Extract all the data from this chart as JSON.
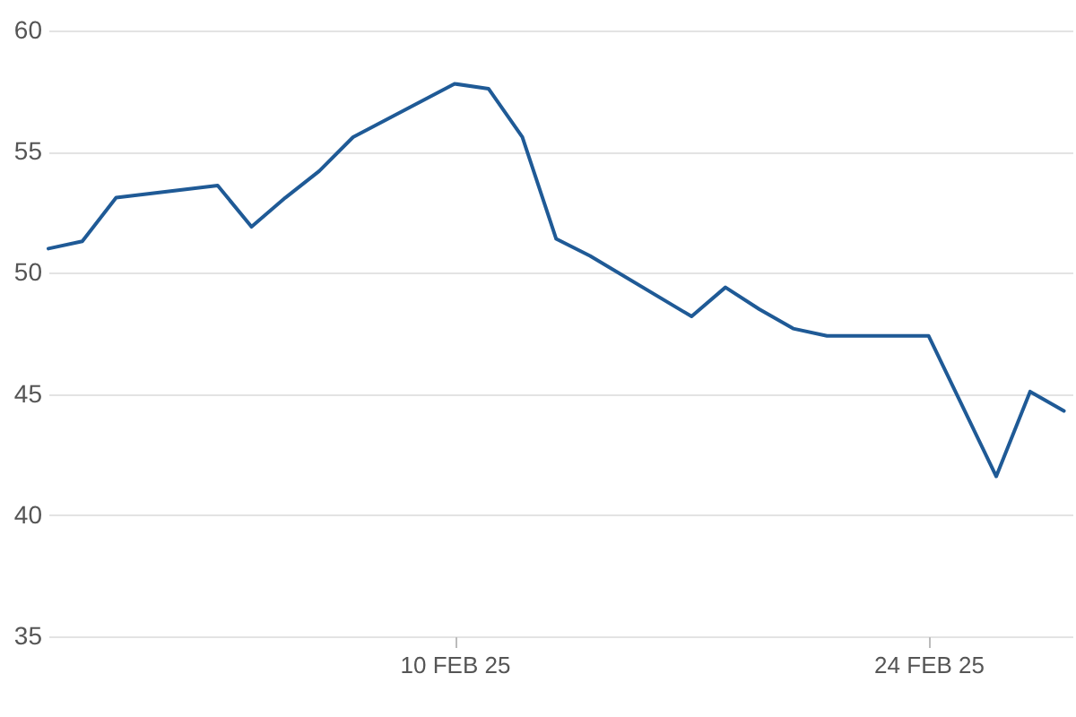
{
  "chart_data": {
    "type": "line",
    "x": [
      "--01-29",
      "--01-30",
      "--01-31",
      "--02-03",
      "--02-04",
      "--02-05",
      "--02-06",
      "--02-07",
      "--02-10",
      "--02-11",
      "--02-12",
      "--02-13",
      "--02-14",
      "--02-17",
      "--02-18",
      "--02-19",
      "--02-20",
      "--02-21",
      "--02-24",
      "--02-26",
      "--02-27",
      "--02-28"
    ],
    "series": [
      {
        "color": "#1f5a96",
        "values": [
          51.0,
          51.3,
          53.1,
          53.6,
          51.9,
          53.1,
          54.2,
          55.6,
          57.8,
          57.6,
          55.6,
          51.4,
          50.7,
          48.2,
          49.4,
          48.5,
          47.7,
          47.4,
          47.4,
          41.6,
          45.1,
          44.3
        ]
      }
    ],
    "xlim": [
      "--01-29",
      "--02-28T06:00"
    ],
    "xticks": [
      {
        "value": "--02-10",
        "label": "10 FEB 25"
      },
      {
        "value": "--02-24",
        "label": "24 FEB 25"
      }
    ],
    "ylim": [
      35,
      60
    ],
    "yticks": [
      35,
      40,
      45,
      50,
      55,
      60
    ],
    "grid": "y",
    "line_style": "solid",
    "marker": "none"
  }
}
